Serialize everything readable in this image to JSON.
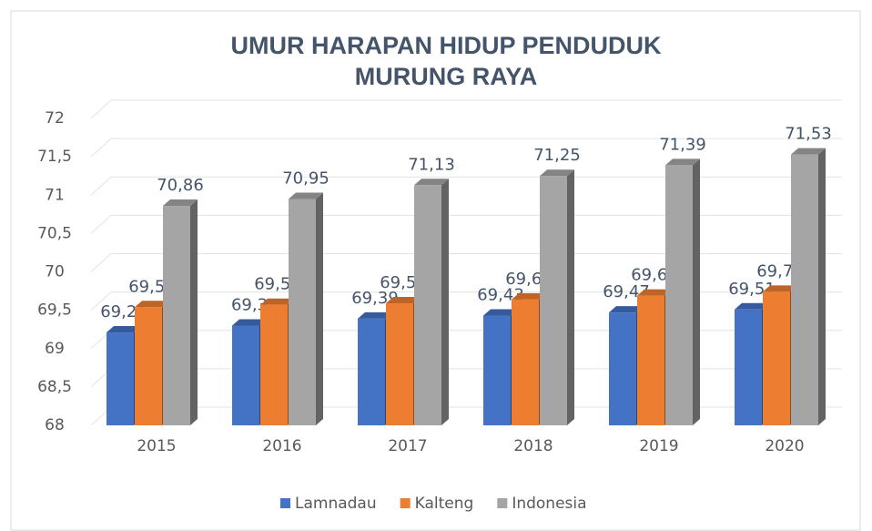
{
  "chart_data": {
    "type": "bar3d",
    "title": [
      "UMUR HARAPAN HIDUP PENDUDUK",
      "MURUNG RAYA"
    ],
    "categories": [
      "2015",
      "2016",
      "2017",
      "2018",
      "2019",
      "2020"
    ],
    "series": [
      {
        "name": "Lamnadau",
        "color": "#4472c4",
        "values": [
          69.21,
          69.3,
          69.39,
          69.43,
          69.47,
          69.51
        ],
        "value_labels": [
          "69,21",
          "69,3",
          "69,39",
          "69,43",
          "69,47",
          "69,51"
        ]
      },
      {
        "name": "Kalteng",
        "color": "#ed7d31",
        "values": [
          69.54,
          69.57,
          69.59,
          69.64,
          69.69,
          69.74
        ],
        "value_labels": [
          "69,54",
          "69,57",
          "69,59",
          "69,64",
          "69,69",
          "69,74"
        ]
      },
      {
        "name": "Indonesia",
        "color": "#a5a5a5",
        "values": [
          70.86,
          70.95,
          71.13,
          71.25,
          71.39,
          71.53
        ],
        "value_labels": [
          "70,86",
          "70,95",
          "71,13",
          "71,25",
          "71,39",
          "71,53"
        ]
      }
    ],
    "ylim": [
      68,
      72
    ],
    "yticks": [
      68,
      {
        "value": 68.5,
        "label": "68,5"
      },
      69,
      {
        "value": 69.5,
        "label": "69,5"
      },
      70,
      {
        "value": 70.5,
        "label": "70,5"
      },
      71,
      {
        "value": 71.5,
        "label": "71,5"
      },
      72
    ],
    "grid": true,
    "legend": "bottom"
  }
}
